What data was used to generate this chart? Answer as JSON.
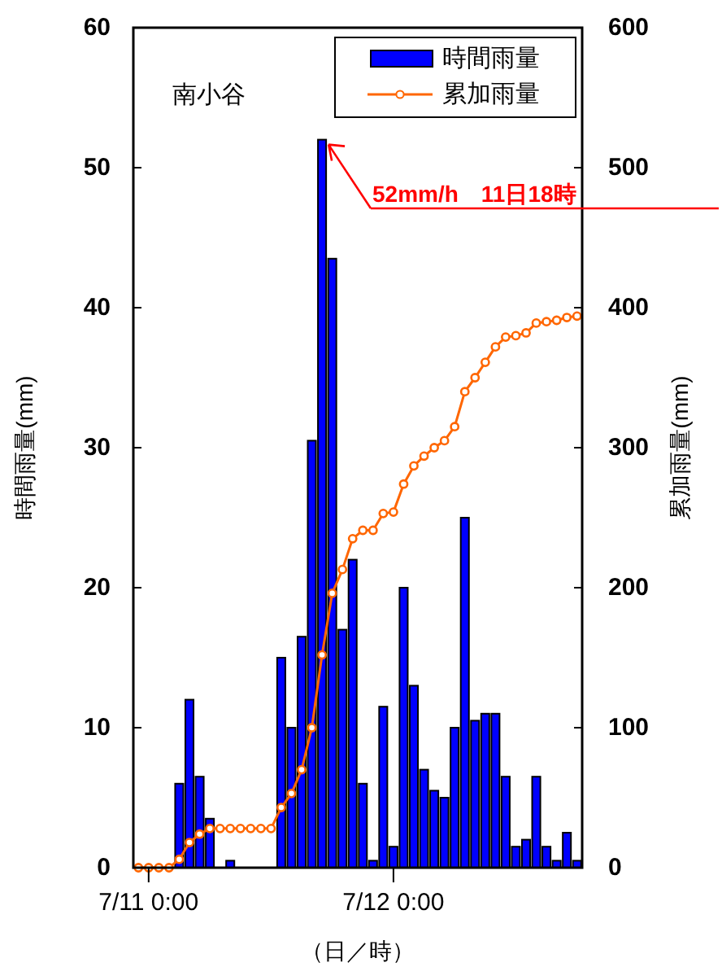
{
  "chart_data": {
    "type": "bar",
    "title": "南小谷",
    "xlabel": "（日／時）",
    "ylabel": "時間雨量(mm)",
    "y2label": "累加雨量(mm)",
    "categories": [
      null,
      "7/11 0:00",
      null,
      null,
      null,
      null,
      null,
      null,
      null,
      null,
      null,
      null,
      null,
      null,
      null,
      null,
      null,
      null,
      null,
      null,
      null,
      null,
      null,
      null,
      null,
      "7/12 0:00",
      null,
      null,
      null,
      null,
      null,
      null,
      null,
      null,
      null,
      null,
      null,
      null,
      null,
      null,
      null,
      null,
      null,
      null
    ],
    "ylim": [
      0,
      60
    ],
    "yticks": [
      0,
      10,
      20,
      30,
      40,
      50,
      60
    ],
    "y2lim": [
      0,
      600
    ],
    "y2ticks": [
      0,
      100,
      200,
      300,
      400,
      500,
      600
    ],
    "series": [
      {
        "name": "時間雨量",
        "color": "#0000ff",
        "values": [
          0,
          0,
          0,
          0,
          6,
          12,
          6.5,
          3.5,
          0,
          0.5,
          0,
          0,
          0,
          0,
          15,
          10,
          16.5,
          30.5,
          52,
          43.5,
          17,
          22,
          6,
          0.5,
          11.5,
          1.5,
          20,
          13,
          7,
          5.5,
          5,
          10,
          25,
          10.5,
          11,
          11,
          6.5,
          1.5,
          2,
          6.5,
          1.5,
          0.5,
          2.5,
          0.5
        ]
      },
      {
        "name": "累加雨量",
        "type": "line",
        "axis": "y2",
        "color": "#ff6600",
        "marker": "circle",
        "values": [
          0,
          0,
          0,
          0,
          6,
          18,
          24,
          28,
          28,
          28,
          28,
          28,
          28,
          28,
          43,
          53,
          70,
          100,
          152,
          196,
          213,
          235,
          241,
          241,
          253,
          254,
          274,
          287,
          294,
          300,
          305,
          315,
          340,
          350,
          361,
          372,
          379,
          380,
          382,
          389,
          390,
          391,
          393,
          394
        ]
      }
    ],
    "annotations": [
      "52mm/h　11日18時"
    ],
    "legend": "top right",
    "grid": false
  }
}
